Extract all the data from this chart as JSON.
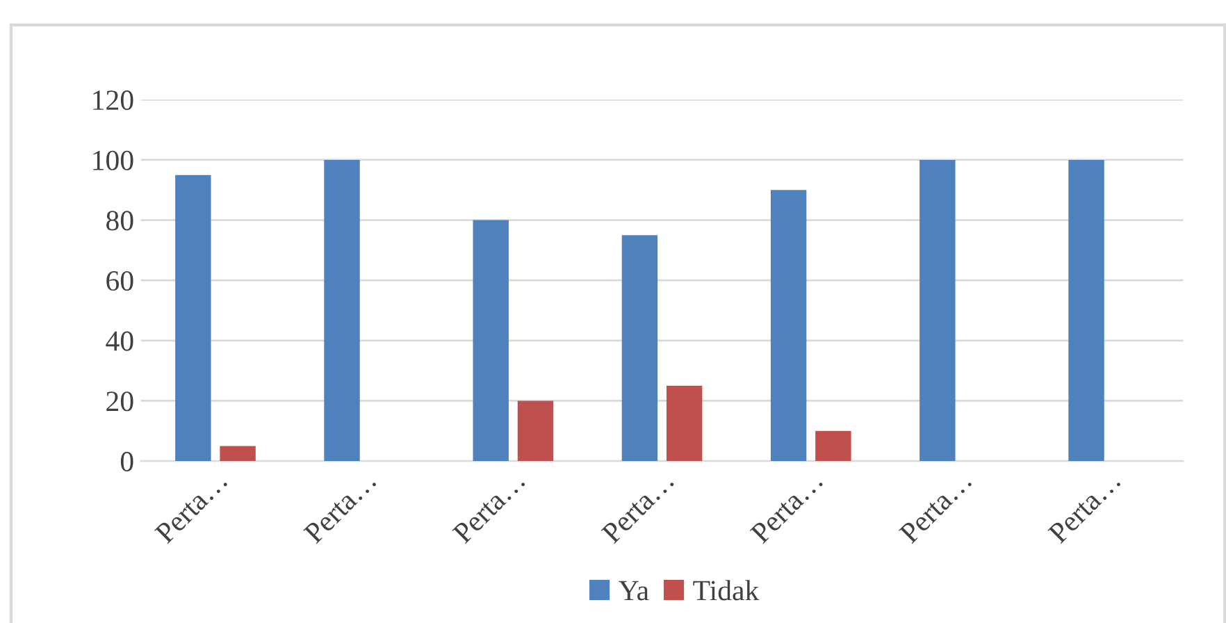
{
  "chart_data": {
    "type": "bar",
    "categories": [
      "Perta…",
      "Perta…",
      "Perta…",
      "Perta…",
      "Perta…",
      "Perta…",
      "Perta…"
    ],
    "series": [
      {
        "name": "Ya",
        "color": "#4f81bd",
        "values": [
          95,
          100,
          80,
          75,
          90,
          100,
          100
        ]
      },
      {
        "name": "Tidak",
        "color": "#c0504d",
        "values": [
          5,
          0,
          20,
          25,
          10,
          0,
          0
        ]
      }
    ],
    "ylim": [
      0,
      120
    ],
    "yticks": [
      0,
      20,
      40,
      60,
      80,
      100,
      120
    ],
    "grid": "y",
    "legend": "bottom"
  }
}
